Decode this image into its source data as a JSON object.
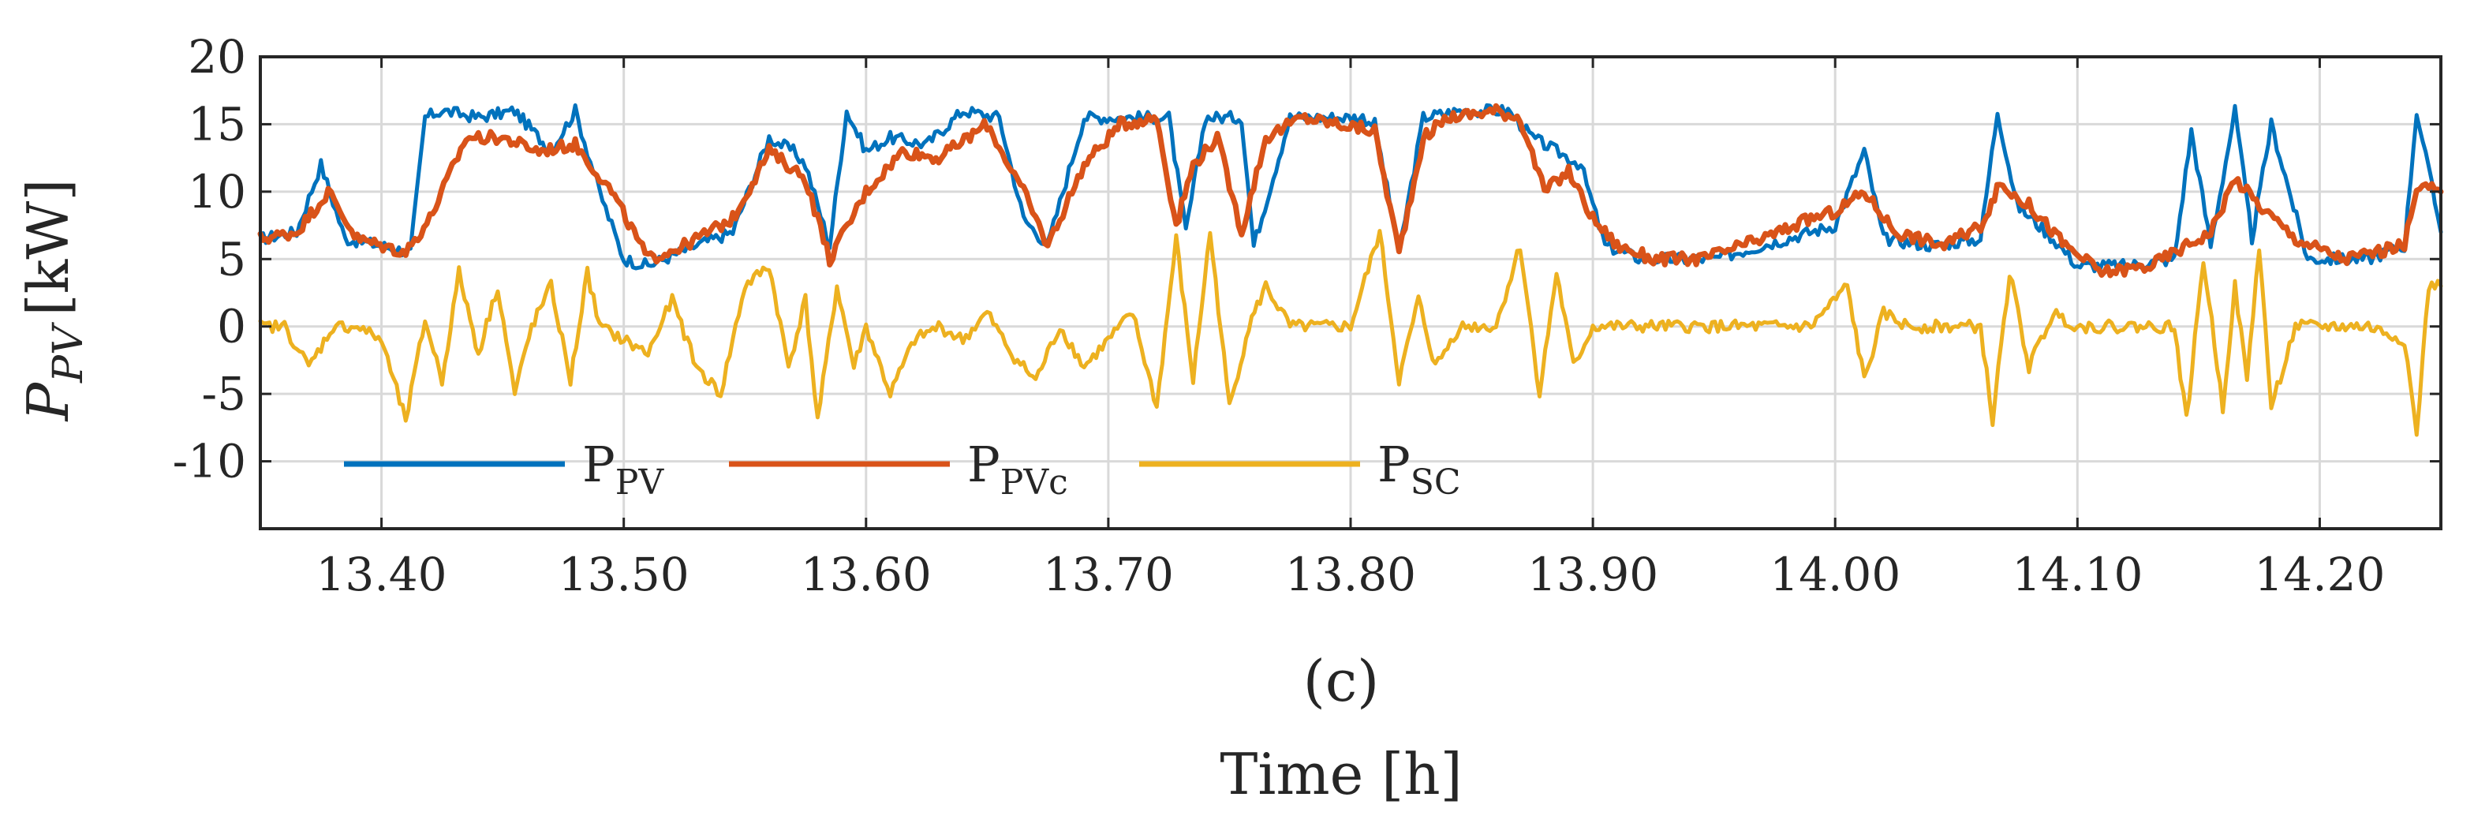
{
  "chart_data": {
    "type": "line",
    "panel_label": "(c)",
    "xlabel": "Time [h]",
    "ylabel": {
      "main": "P",
      "sub": "PV",
      "unit": "[kW]"
    },
    "xlim": [
      13.35,
      14.25
    ],
    "ylim": [
      -15,
      20
    ],
    "grid": true,
    "legend_position": "lower-left",
    "xticks": [
      {
        "value": 13.4,
        "label": "13.40"
      },
      {
        "value": 13.5,
        "label": "13.50"
      },
      {
        "value": 13.6,
        "label": "13.60"
      },
      {
        "value": 13.7,
        "label": "13.70"
      },
      {
        "value": 13.8,
        "label": "13.80"
      },
      {
        "value": 13.9,
        "label": "13.90"
      },
      {
        "value": 14.0,
        "label": "14.00"
      },
      {
        "value": 14.1,
        "label": "14.10"
      },
      {
        "value": 14.2,
        "label": "14.20"
      }
    ],
    "yticks": [
      {
        "value": 20,
        "label": "20"
      },
      {
        "value": 15,
        "label": "15"
      },
      {
        "value": 10,
        "label": "10"
      },
      {
        "value": 5,
        "label": "5"
      },
      {
        "value": 0,
        "label": "0"
      },
      {
        "value": -5,
        "label": "-5"
      },
      {
        "value": -10,
        "label": "-10"
      }
    ],
    "series": [
      {
        "name": "PV",
        "legend_main": "P",
        "legend_sub": "PV",
        "color": "#0072BD",
        "x": [
          13.35,
          13.365,
          13.375,
          13.385,
          13.4,
          13.412,
          13.418,
          13.425,
          13.44,
          13.455,
          13.47,
          13.48,
          13.49,
          13.5,
          13.51,
          13.53,
          13.545,
          13.56,
          13.57,
          13.575,
          13.585,
          13.592,
          13.6,
          13.61,
          13.625,
          13.64,
          13.655,
          13.665,
          13.675,
          13.69,
          13.71,
          13.725,
          13.732,
          13.74,
          13.755,
          13.76,
          13.775,
          13.79,
          13.805,
          13.81,
          13.82,
          13.83,
          13.845,
          13.86,
          13.865,
          13.875,
          13.885,
          13.895,
          13.905,
          13.92,
          13.95,
          13.98,
          14.0,
          14.012,
          14.02,
          14.04,
          14.06,
          14.067,
          14.075,
          14.09,
          14.1,
          14.12,
          14.14,
          14.147,
          14.155,
          14.165,
          14.172,
          14.18,
          14.195,
          14.22,
          14.235,
          14.24,
          14.25
        ],
        "values": [
          6.5,
          7,
          12,
          6.5,
          6,
          5.5,
          15.5,
          16,
          15.5,
          16,
          13,
          16,
          10,
          5,
          4.5,
          6,
          7,
          14,
          13,
          12,
          6,
          16,
          13,
          14,
          13.5,
          16,
          15.5,
          8,
          6,
          15.5,
          15.5,
          15.5,
          7,
          15.5,
          15.5,
          6,
          15.5,
          15.5,
          15.5,
          15,
          5.5,
          15.5,
          16,
          16,
          16,
          14,
          13,
          12,
          6,
          5,
          5,
          6.5,
          7.5,
          13,
          6.5,
          6,
          6.5,
          16,
          9,
          6.5,
          4.5,
          4.5,
          5,
          14.5,
          6,
          16,
          6.5,
          15,
          5,
          5,
          6,
          16,
          7
        ]
      },
      {
        "name": "PVc",
        "legend_main": "P",
        "legend_sub": "PVc",
        "color": "#D95319",
        "x": [
          13.35,
          13.365,
          13.378,
          13.39,
          13.41,
          13.42,
          13.435,
          13.45,
          13.465,
          13.48,
          13.495,
          13.51,
          13.525,
          13.545,
          13.56,
          13.575,
          13.585,
          13.6,
          13.615,
          13.63,
          13.65,
          13.665,
          13.675,
          13.69,
          13.705,
          13.72,
          13.728,
          13.735,
          13.745,
          13.755,
          13.765,
          13.78,
          13.795,
          13.81,
          13.82,
          13.83,
          13.84,
          13.86,
          13.87,
          13.88,
          13.89,
          13.9,
          13.91,
          13.925,
          13.945,
          13.97,
          13.99,
          14.0,
          14.012,
          14.025,
          14.045,
          14.06,
          14.068,
          14.08,
          14.095,
          14.11,
          14.13,
          14.145,
          14.155,
          14.165,
          14.175,
          14.19,
          14.21,
          14.235,
          14.24,
          14.25
        ],
        "values": [
          6.5,
          7,
          10,
          6.5,
          5.5,
          8,
          14,
          14,
          13,
          13.5,
          10,
          5,
          6,
          8,
          13,
          11,
          5,
          10,
          13,
          12.5,
          15,
          10,
          6,
          12,
          15,
          15.5,
          7.5,
          12,
          14,
          7,
          14,
          15.5,
          15,
          14.5,
          5.5,
          14,
          15.5,
          16,
          15.5,
          10,
          11.5,
          8,
          6,
          5,
          5,
          6.5,
          8,
          8.5,
          10,
          7,
          6,
          7.5,
          10.5,
          9,
          6,
          4,
          4.5,
          6,
          7,
          11,
          9,
          6.5,
          5,
          6,
          10.5,
          10
        ]
      },
      {
        "name": "SC",
        "legend_main": "P",
        "legend_sub": "SC",
        "color": "#EDB120",
        "x": [
          13.35,
          13.36,
          13.37,
          13.38,
          13.39,
          13.4,
          13.41,
          13.418,
          13.425,
          13.432,
          13.44,
          13.448,
          13.455,
          13.462,
          13.47,
          13.478,
          13.485,
          13.49,
          13.5,
          13.51,
          13.52,
          13.53,
          13.54,
          13.55,
          13.56,
          13.568,
          13.575,
          13.58,
          13.588,
          13.595,
          13.6,
          13.61,
          13.62,
          13.63,
          13.64,
          13.65,
          13.66,
          13.67,
          13.68,
          13.69,
          13.7,
          13.71,
          13.72,
          13.728,
          13.735,
          13.742,
          13.75,
          13.758,
          13.765,
          13.775,
          13.79,
          13.8,
          13.812,
          13.82,
          13.828,
          13.835,
          13.845,
          13.86,
          13.87,
          13.878,
          13.885,
          13.892,
          13.9,
          13.91,
          13.93,
          13.96,
          13.99,
          14.005,
          14.012,
          14.02,
          14.03,
          14.045,
          14.06,
          14.065,
          14.072,
          14.08,
          14.09,
          14.1,
          14.12,
          14.14,
          14.145,
          14.152,
          14.16,
          14.165,
          14.17,
          14.175,
          14.18,
          14.19,
          14.2,
          14.22,
          14.235,
          14.24,
          14.245,
          14.25
        ],
        "values": [
          0,
          0,
          -3,
          0,
          0,
          -1,
          -7,
          0.5,
          -4,
          4,
          -2,
          3,
          -5,
          0,
          3,
          -4,
          4,
          0,
          -1,
          -2,
          2,
          -3,
          -5,
          3,
          4.5,
          -3,
          2,
          -7,
          3,
          -3,
          0,
          -5,
          -1,
          0,
          -1,
          1,
          -2,
          -4,
          0,
          -3,
          -1,
          1,
          -6,
          6.5,
          -4,
          7,
          -6,
          0,
          3,
          0,
          0,
          0,
          7,
          -4,
          2,
          -3,
          0,
          0,
          6,
          -5,
          4,
          -3,
          0,
          0,
          0,
          0,
          0,
          3,
          -4,
          1,
          0,
          0,
          0,
          -7,
          4,
          -3,
          1,
          0,
          0,
          0,
          -7,
          5,
          -6,
          3,
          -4,
          6,
          -6,
          0,
          0,
          0,
          -1,
          -8,
          3,
          3
        ]
      }
    ]
  }
}
